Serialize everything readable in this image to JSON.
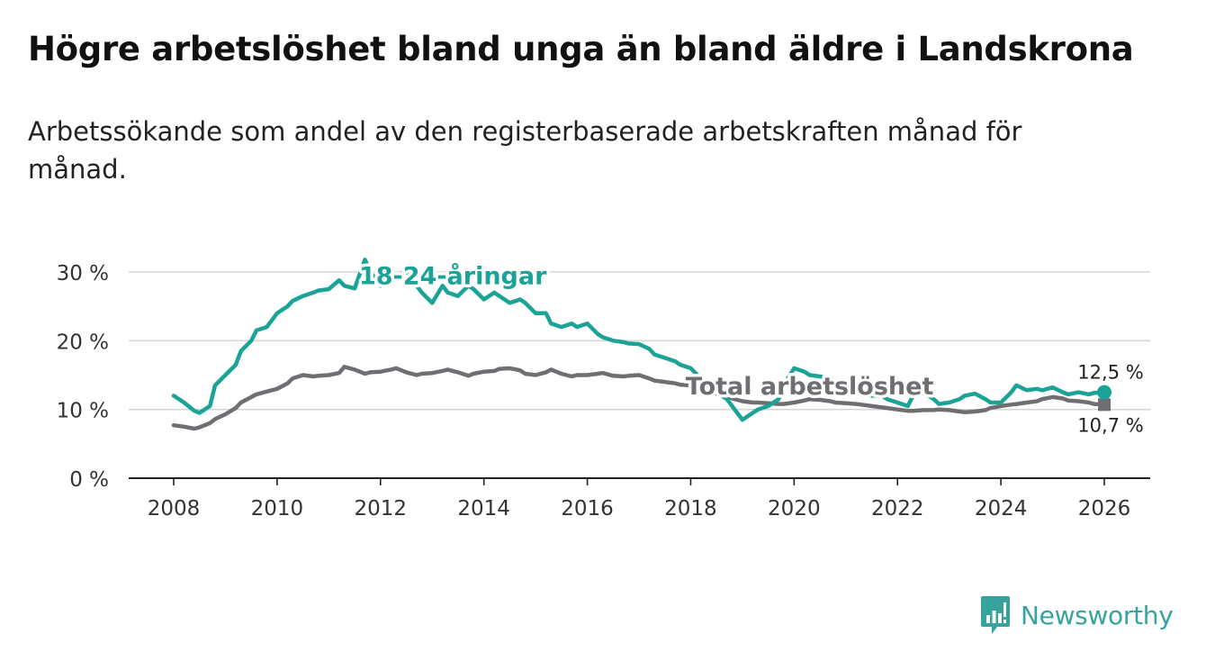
{
  "header": {
    "title": "Högre arbetslöshet bland unga än bland äldre i Landskrona",
    "subtitle": "Arbetssökande som andel av den registerbaserade arbetskraften månad för månad."
  },
  "brand": {
    "name": "Newsworthy",
    "icon": "newsworthy-logo-icon",
    "color": "#36a39c"
  },
  "chart_data": {
    "type": "line",
    "title": "Högre arbetslöshet bland unga än bland äldre i Landskrona",
    "subtitle": "Arbetssökande som andel av den registerbaserade arbetskraften månad för månad.",
    "xlabel": "",
    "ylabel": "",
    "xlim": [
      2007.8,
      2026.9
    ],
    "ylim": [
      0,
      32
    ],
    "x_ticks": [
      2008,
      2010,
      2012,
      2014,
      2016,
      2018,
      2020,
      2022,
      2024,
      2026
    ],
    "y_ticks": [
      0,
      10,
      20,
      30
    ],
    "y_tick_labels": [
      "0 %",
      "10 %",
      "20 %",
      "30 %"
    ],
    "grid": true,
    "legend": "inline labels",
    "series": [
      {
        "name": "18-24-åringar",
        "color": "#1aa396",
        "label_at": [
          2013.4,
          28.2
        ],
        "end_label": "12,5 %",
        "end_value": 12.5,
        "x": [
          2008.0,
          2008.2,
          2008.4,
          2008.5,
          2008.7,
          2008.8,
          2009.0,
          2009.2,
          2009.3,
          2009.5,
          2009.6,
          2009.8,
          2010.0,
          2010.2,
          2010.3,
          2010.5,
          2010.7,
          2010.8,
          2011.0,
          2011.2,
          2011.3,
          2011.5,
          2011.7,
          2011.8,
          2012.0,
          2012.2,
          2012.3,
          2012.5,
          2012.7,
          2012.8,
          2013.0,
          2013.2,
          2013.3,
          2013.5,
          2013.7,
          2013.8,
          2014.0,
          2014.2,
          2014.3,
          2014.5,
          2014.7,
          2014.8,
          2015.0,
          2015.2,
          2015.3,
          2015.5,
          2015.7,
          2015.8,
          2016.0,
          2016.2,
          2016.3,
          2016.5,
          2016.7,
          2016.8,
          2017.0,
          2017.2,
          2017.3,
          2017.5,
          2017.7,
          2017.8,
          2018.0,
          2018.2,
          2018.3,
          2018.5,
          2018.7,
          2018.8,
          2019.0,
          2019.2,
          2019.3,
          2019.5,
          2019.7,
          2019.8,
          2020.0,
          2020.2,
          2020.3,
          2020.5,
          2020.7,
          2020.8,
          2021.0,
          2021.2,
          2021.3,
          2021.5,
          2021.7,
          2021.8,
          2022.0,
          2022.2,
          2022.3,
          2022.5,
          2022.7,
          2022.8,
          2023.0,
          2023.2,
          2023.3,
          2023.5,
          2023.7,
          2023.8,
          2024.0,
          2024.2,
          2024.3,
          2024.5,
          2024.7,
          2024.8,
          2025.0,
          2025.2,
          2025.3,
          2025.5,
          2025.7,
          2025.8,
          2026.0
        ],
        "values": [
          12.0,
          11.0,
          9.8,
          9.5,
          10.5,
          13.5,
          15.0,
          16.5,
          18.5,
          20.0,
          21.5,
          22.0,
          24.0,
          25.0,
          25.8,
          26.5,
          27.0,
          27.3,
          27.5,
          28.8,
          28.0,
          27.6,
          31.8,
          30.0,
          28.0,
          29.2,
          29.3,
          30.2,
          28.0,
          27.0,
          25.5,
          28.0,
          27.0,
          26.5,
          28.0,
          27.5,
          26.0,
          27.0,
          26.5,
          25.5,
          26.0,
          25.5,
          24.0,
          24.0,
          22.5,
          22.0,
          22.5,
          22.0,
          22.5,
          21.0,
          20.5,
          20.0,
          19.8,
          19.6,
          19.5,
          18.8,
          18.0,
          17.5,
          17.0,
          16.5,
          16.0,
          14.5,
          13.5,
          12.5,
          11.5,
          10.5,
          8.5,
          9.5,
          10.0,
          10.5,
          11.5,
          13.5,
          16.0,
          15.5,
          15.0,
          14.8,
          14.5,
          14.0,
          13.5,
          13.5,
          12.5,
          12.0,
          12.0,
          11.5,
          11.0,
          10.5,
          12.0,
          12.5,
          11.5,
          10.8,
          11.0,
          11.5,
          12.0,
          12.3,
          11.5,
          11.0,
          11.0,
          12.5,
          13.5,
          12.8,
          13.0,
          12.8,
          13.2,
          12.5,
          12.2,
          12.5,
          12.2,
          12.4,
          12.5
        ]
      },
      {
        "name": "Total arbetslöshet",
        "color": "#706e73",
        "label_at": [
          2020.3,
          12.2
        ],
        "end_label": "10,7 %",
        "end_value": 10.7,
        "x": [
          2008.0,
          2008.2,
          2008.4,
          2008.5,
          2008.7,
          2008.8,
          2009.0,
          2009.2,
          2009.3,
          2009.5,
          2009.6,
          2009.8,
          2010.0,
          2010.2,
          2010.3,
          2010.5,
          2010.7,
          2010.8,
          2011.0,
          2011.2,
          2011.3,
          2011.5,
          2011.7,
          2011.8,
          2012.0,
          2012.2,
          2012.3,
          2012.5,
          2012.7,
          2012.8,
          2013.0,
          2013.2,
          2013.3,
          2013.5,
          2013.7,
          2013.8,
          2014.0,
          2014.2,
          2014.3,
          2014.5,
          2014.7,
          2014.8,
          2015.0,
          2015.2,
          2015.3,
          2015.5,
          2015.7,
          2015.8,
          2016.0,
          2016.2,
          2016.3,
          2016.5,
          2016.7,
          2016.8,
          2017.0,
          2017.2,
          2017.3,
          2017.5,
          2017.7,
          2017.8,
          2018.0,
          2018.2,
          2018.3,
          2018.5,
          2018.7,
          2018.8,
          2019.0,
          2019.2,
          2019.3,
          2019.5,
          2019.7,
          2019.8,
          2020.0,
          2020.2,
          2020.3,
          2020.5,
          2020.7,
          2020.8,
          2021.0,
          2021.2,
          2021.3,
          2021.5,
          2021.7,
          2021.8,
          2022.0,
          2022.2,
          2022.3,
          2022.5,
          2022.7,
          2022.8,
          2023.0,
          2023.2,
          2023.3,
          2023.5,
          2023.7,
          2023.8,
          2024.0,
          2024.2,
          2024.3,
          2024.5,
          2024.7,
          2024.8,
          2025.0,
          2025.2,
          2025.3,
          2025.5,
          2025.7,
          2025.8,
          2026.0
        ],
        "values": [
          7.7,
          7.5,
          7.2,
          7.4,
          8.0,
          8.6,
          9.3,
          10.2,
          11.0,
          11.8,
          12.2,
          12.6,
          13.0,
          13.8,
          14.5,
          15.0,
          14.8,
          14.9,
          15.0,
          15.3,
          16.2,
          15.8,
          15.2,
          15.4,
          15.5,
          15.8,
          16.0,
          15.4,
          15.0,
          15.2,
          15.3,
          15.6,
          15.8,
          15.4,
          14.9,
          15.2,
          15.5,
          15.6,
          15.9,
          16.0,
          15.7,
          15.2,
          15.0,
          15.4,
          15.8,
          15.2,
          14.8,
          15.0,
          15.0,
          15.2,
          15.3,
          14.9,
          14.8,
          14.9,
          15.0,
          14.5,
          14.2,
          14.0,
          13.8,
          13.6,
          13.5,
          13.2,
          12.8,
          12.3,
          12.0,
          11.6,
          11.2,
          11.0,
          11.0,
          10.9,
          10.8,
          10.8,
          11.0,
          11.3,
          11.5,
          11.4,
          11.2,
          11.0,
          10.9,
          10.8,
          10.7,
          10.5,
          10.3,
          10.2,
          10.0,
          9.8,
          9.8,
          9.9,
          9.9,
          10.0,
          9.9,
          9.7,
          9.6,
          9.7,
          9.9,
          10.2,
          10.5,
          10.7,
          10.8,
          11.0,
          11.2,
          11.5,
          11.8,
          11.6,
          11.3,
          11.2,
          11.0,
          10.8,
          10.7
        ]
      }
    ]
  }
}
